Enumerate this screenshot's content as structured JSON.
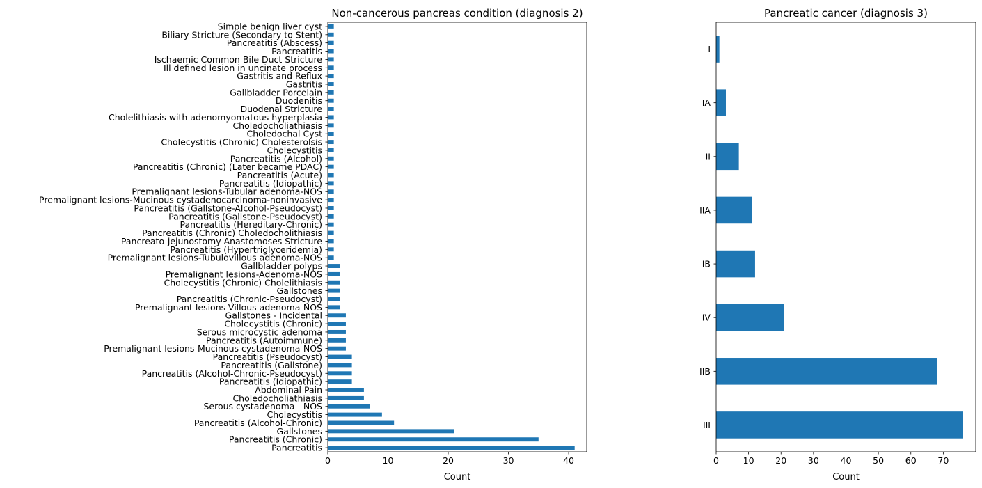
{
  "chart_data": [
    {
      "type": "bar",
      "orientation": "horizontal",
      "title": "Non-cancerous pancreas condition (diagnosis 2)",
      "xlabel": "Count",
      "ylabel": "",
      "xlim": [
        0,
        43
      ],
      "xticks": [
        0,
        10,
        20,
        30,
        40
      ],
      "bar_color": "#1f77b4",
      "categories": [
        "Simple benign liver cyst",
        "Biliary Stricture (Secondary to Stent)",
        "Pancreatitis (Abscess)",
        "Pancreatitis",
        "Ischaemic Common Bile Duct Stricture",
        "Ill defined lesion in uncinate process",
        "Gastritis and Reflux",
        "Gastritis",
        "Gallbladder Porcelain",
        "Duodenitis",
        "Duodenal Stricture",
        "Cholelithiasis with adenomyomatous hyperplasia",
        "Choledocholiathiasis",
        "Choledochal Cyst",
        "Cholecystitis (Chronic) Cholesterolsis",
        "Cholecystitis",
        "Pancreatitis (Alcohol)",
        "Pancreatitis (Chronic) (Later became PDAC)",
        "Pancreatitis (Acute)",
        "Pancreatitis (Idiopathic)",
        "Premalignant lesions-Tubular adenoma-NOS",
        "Premalignant lesions-Mucinous cystadenocarcinoma-noninvasive",
        "Pancreatitis (Gallstone-Alcohol-Pseudocyst)",
        "Pancreatitis (Gallstone-Pseudocyst)",
        "Pancreatitis (Hereditary-Chronic)",
        "Pancreatitis (Chronic) Choledocholithiasis",
        "Pancreato-jejunostomy Anastomoses Stricture",
        "Pancreatitis (Hypertriglyceridemia)",
        "Premalignant lesions-Tubulovillous adenoma-NOS",
        "Gallbladder polyps",
        "Premalignant lesions-Adenoma-NOS",
        "Cholecystitis (Chronic) Cholelithiasis",
        "Gallstones",
        "Pancreatitis (Chronic-Pseudocyst)",
        "Premalignant lesions-Villous adenoma-NOS",
        "Gallstones - Incidental",
        "Cholecystitis (Chronic)",
        "Serous microcystic adenoma",
        "Pancreatitis (Autoimmune)",
        "Premalignant lesions-Mucinous cystadenoma-NOS",
        "Pancreatitis (Pseudocyst)",
        "Pancreatitis (Gallstone)",
        "Pancreatitis (Alcohol-Chronic-Pseudocyst)",
        "Pancreatitis (Idiopathic)",
        "Abdominal Pain",
        "Choledocholiathiasis",
        "Serous cystadenoma - NOS",
        "Cholecystitis",
        "Pancreatitis (Alcohol-Chronic)",
        "Gallstones",
        "Pancreatitis (Chronic)",
        "Pancreatitis"
      ],
      "values": [
        1,
        1,
        1,
        1,
        1,
        1,
        1,
        1,
        1,
        1,
        1,
        1,
        1,
        1,
        1,
        1,
        1,
        1,
        1,
        1,
        1,
        1,
        1,
        1,
        1,
        1,
        1,
        1,
        1,
        2,
        2,
        2,
        2,
        2,
        2,
        3,
        3,
        3,
        3,
        3,
        4,
        4,
        4,
        4,
        6,
        6,
        7,
        9,
        11,
        21,
        35,
        41
      ]
    },
    {
      "type": "bar",
      "orientation": "horizontal",
      "title": "Pancreatic cancer (diagnosis 3)",
      "xlabel": "Count",
      "ylabel": "",
      "xlim": [
        0,
        80
      ],
      "xticks": [
        0,
        10,
        20,
        30,
        40,
        50,
        60,
        70
      ],
      "bar_color": "#1f77b4",
      "categories": [
        "I",
        "IA",
        "II",
        "IIA",
        "IB",
        "IV",
        "IIB",
        "III"
      ],
      "values": [
        1,
        3,
        7,
        11,
        12,
        21,
        68,
        76
      ]
    }
  ]
}
